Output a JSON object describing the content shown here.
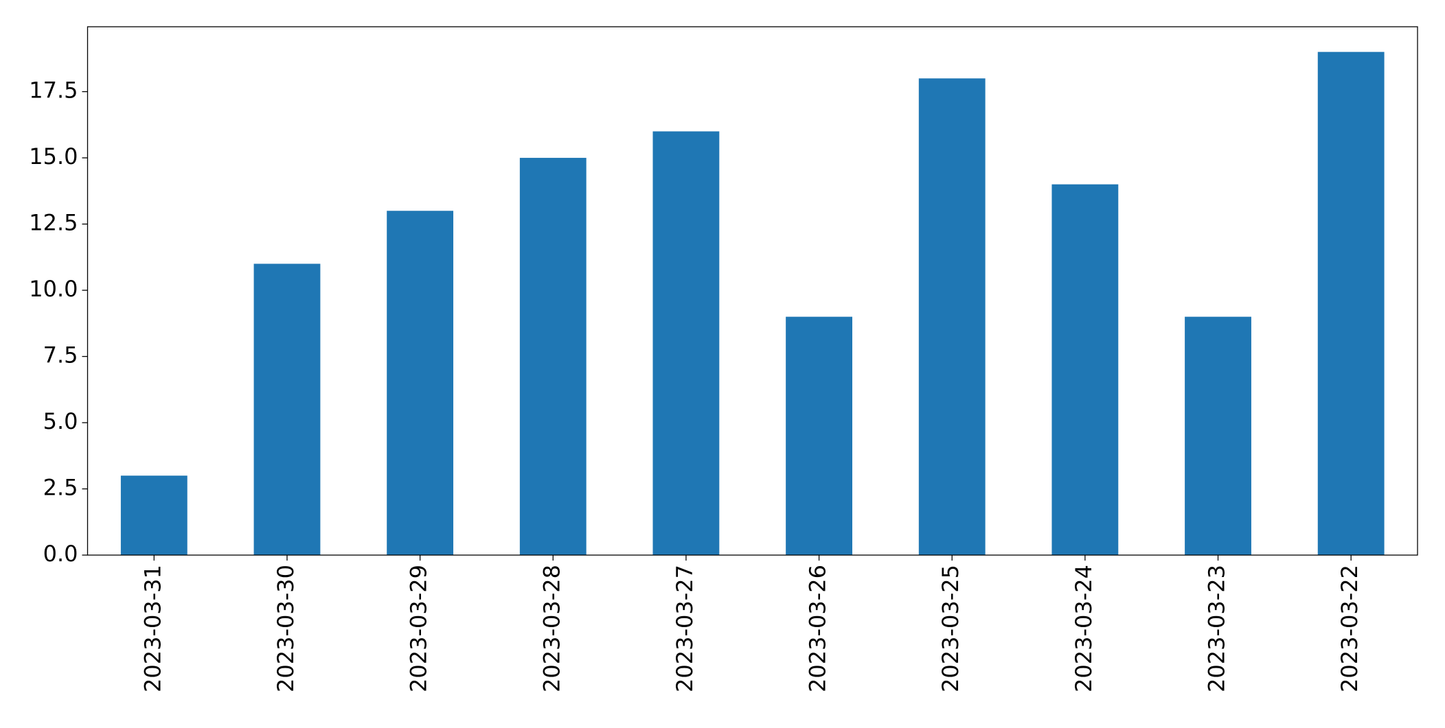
{
  "chart_data": {
    "type": "bar",
    "categories": [
      "2023-03-31",
      "2023-03-30",
      "2023-03-29",
      "2023-03-28",
      "2023-03-27",
      "2023-03-26",
      "2023-03-25",
      "2023-03-24",
      "2023-03-23",
      "2023-03-22"
    ],
    "values": [
      3,
      11,
      13,
      15,
      16,
      9,
      18,
      14,
      9,
      19
    ],
    "color": "#1f77b4",
    "ylim": [
      0,
      19.95
    ],
    "yticks": [
      {
        "value": 0,
        "label": "0.0"
      },
      2.5,
      {
        "value": 5,
        "label": "5.0"
      },
      7.5,
      {
        "value": 10,
        "label": "10.0"
      },
      12.5,
      {
        "value": 15,
        "label": "15.0"
      },
      17.5
    ],
    "grid": false
  }
}
